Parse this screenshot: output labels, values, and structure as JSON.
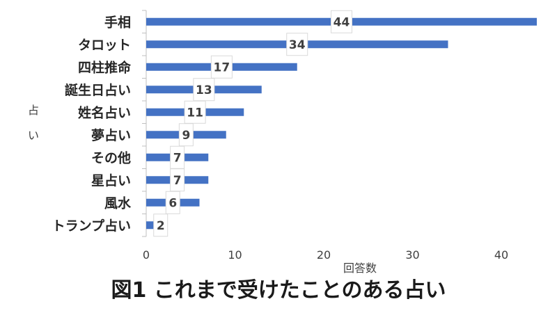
{
  "chart_data": {
    "type": "bar",
    "orientation": "horizontal",
    "title": "図1 これまで受けたことのある占い",
    "xlabel": "回答数",
    "ylabel": "占い",
    "categories": [
      "手相",
      "タロット",
      "四柱推命",
      "誕生日占い",
      "姓名占い",
      "夢占い",
      "その他",
      "星占い",
      "風水",
      "トランプ占い"
    ],
    "values": [
      44,
      34,
      17,
      13,
      11,
      9,
      7,
      7,
      6,
      2
    ],
    "xlim": [
      0,
      44
    ],
    "xticks": [
      "0",
      "10",
      "20",
      "30",
      "40"
    ],
    "grid": false,
    "data_labels": true,
    "bar_color": "#4472c4"
  }
}
